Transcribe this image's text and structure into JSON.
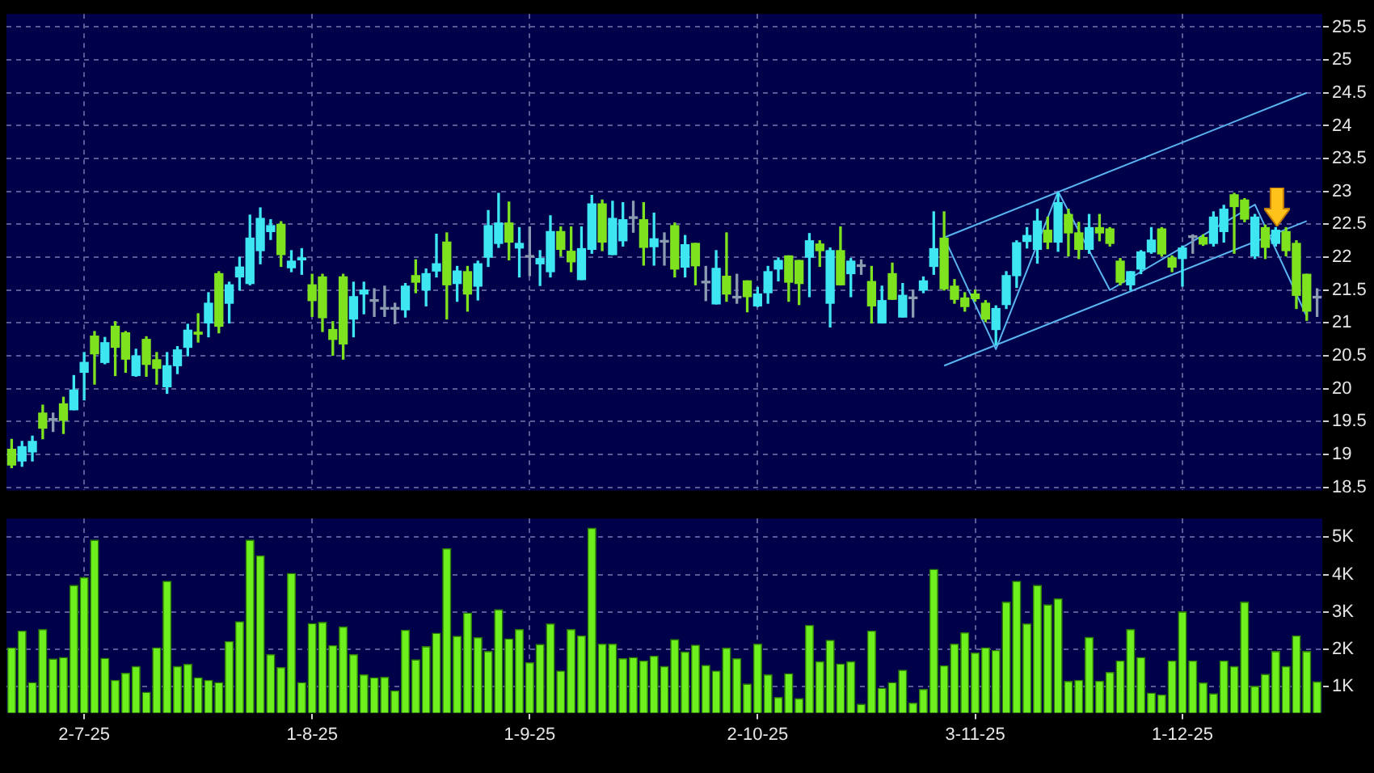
{
  "chart_data": [
    {
      "type": "candlestick",
      "categories": [
        null,
        null,
        null,
        null,
        null,
        null,
        null,
        null,
        null,
        null,
        null,
        null,
        null,
        null,
        null,
        null,
        null,
        null,
        null,
        null,
        null,
        null,
        null,
        null,
        null,
        null,
        null,
        null,
        null,
        null,
        null,
        null,
        null,
        null,
        null,
        null,
        null,
        null,
        null,
        null,
        null,
        null,
        null,
        null,
        null,
        null,
        null,
        null,
        null,
        null,
        null,
        null,
        null,
        null,
        null,
        null,
        null,
        null,
        null,
        null,
        null,
        null,
        null,
        null,
        null,
        null,
        null,
        null,
        null,
        null,
        null,
        null,
        null,
        null,
        null,
        null,
        null,
        null,
        null,
        null,
        null,
        null,
        null,
        null,
        null,
        null,
        null,
        null,
        null,
        null,
        null,
        null,
        null,
        null,
        null,
        null,
        null,
        null,
        null,
        null,
        null,
        null,
        null,
        null,
        null,
        null,
        null,
        null,
        null,
        null,
        null,
        null,
        null,
        null,
        null,
        null,
        null,
        null,
        null,
        null,
        null,
        null,
        null,
        null,
        null,
        null,
        null
      ],
      "ohlc": [
        [
          19.08,
          19.23,
          18.8,
          18.84
        ],
        [
          18.9,
          19.2,
          18.82,
          19.12
        ],
        [
          19.04,
          19.28,
          18.9,
          19.2
        ],
        [
          19.63,
          19.75,
          19.24,
          19.4
        ],
        [
          19.52,
          19.63,
          19.35,
          19.52
        ],
        [
          19.77,
          19.87,
          19.32,
          19.52
        ],
        [
          19.68,
          20.2,
          19.68,
          19.98
        ],
        [
          20.25,
          20.55,
          19.83,
          20.4
        ],
        [
          20.8,
          20.87,
          20.07,
          20.53
        ],
        [
          20.4,
          20.78,
          20.38,
          20.7
        ],
        [
          20.95,
          21.02,
          20.2,
          20.63
        ],
        [
          20.85,
          20.87,
          20.25,
          20.45
        ],
        [
          20.2,
          20.6,
          20.19,
          20.5
        ],
        [
          20.75,
          20.79,
          20.19,
          20.37
        ],
        [
          20.44,
          20.55,
          20.07,
          20.31
        ],
        [
          20.03,
          20.55,
          19.93,
          20.35
        ],
        [
          20.35,
          20.64,
          20.23,
          20.59
        ],
        [
          20.63,
          20.98,
          20.5,
          20.89
        ],
        [
          20.86,
          21.14,
          20.71,
          20.83
        ],
        [
          21.0,
          21.46,
          20.79,
          21.3
        ],
        [
          21.75,
          21.78,
          20.85,
          20.95
        ],
        [
          21.3,
          21.62,
          21.0,
          21.58
        ],
        [
          21.7,
          22.0,
          21.5,
          21.85
        ],
        [
          21.6,
          22.64,
          21.58,
          22.29
        ],
        [
          22.1,
          22.75,
          21.9,
          22.59
        ],
        [
          22.39,
          22.57,
          22.27,
          22.48
        ],
        [
          22.5,
          22.54,
          21.86,
          22.04
        ],
        [
          21.84,
          22.1,
          21.78,
          21.94
        ],
        [
          21.96,
          22.13,
          21.74,
          21.99
        ],
        [
          21.58,
          21.74,
          21.1,
          21.34
        ],
        [
          21.7,
          21.74,
          20.87,
          21.08
        ],
        [
          20.9,
          21.02,
          20.51,
          20.75
        ],
        [
          21.7,
          21.74,
          20.45,
          20.68
        ],
        [
          21.06,
          21.62,
          20.79,
          21.4
        ],
        [
          21.44,
          21.62,
          21.14,
          21.5
        ],
        [
          21.33,
          21.52,
          21.1,
          21.33
        ],
        [
          21.21,
          21.56,
          21.1,
          21.21
        ],
        [
          21.21,
          21.3,
          20.99,
          21.21
        ],
        [
          21.2,
          21.6,
          21.09,
          21.56
        ],
        [
          21.72,
          21.96,
          21.46,
          21.62
        ],
        [
          21.5,
          21.82,
          21.26,
          21.75
        ],
        [
          21.79,
          22.35,
          21.7,
          21.9
        ],
        [
          22.23,
          22.37,
          21.06,
          21.58
        ],
        [
          21.6,
          21.86,
          21.33,
          21.79
        ],
        [
          21.78,
          21.86,
          21.18,
          21.44
        ],
        [
          21.56,
          21.94,
          21.35,
          21.9
        ],
        [
          22.0,
          22.71,
          21.86,
          22.48
        ],
        [
          22.21,
          22.97,
          22.15,
          22.52
        ],
        [
          22.52,
          22.84,
          21.96,
          22.23
        ],
        [
          22.14,
          22.45,
          21.7,
          22.21
        ],
        [
          22.0,
          22.46,
          21.72,
          22.0
        ],
        [
          21.9,
          22.1,
          21.57,
          21.98
        ],
        [
          21.78,
          22.63,
          21.7,
          22.39
        ],
        [
          22.39,
          22.46,
          22.02,
          22.12
        ],
        [
          22.09,
          22.46,
          21.78,
          21.93
        ],
        [
          21.66,
          22.46,
          21.66,
          22.13
        ],
        [
          22.12,
          22.94,
          22.06,
          22.81
        ],
        [
          22.81,
          22.87,
          22.1,
          22.23
        ],
        [
          22.04,
          22.85,
          22.04,
          22.59
        ],
        [
          22.25,
          22.83,
          22.17,
          22.57
        ],
        [
          22.59,
          22.85,
          22.38,
          22.59
        ],
        [
          22.57,
          22.83,
          21.88,
          22.15
        ],
        [
          22.16,
          22.67,
          21.88,
          22.28
        ],
        [
          22.23,
          22.37,
          21.88,
          22.23
        ],
        [
          22.48,
          22.52,
          21.7,
          21.82
        ],
        [
          21.85,
          22.33,
          21.7,
          22.19
        ],
        [
          22.21,
          22.21,
          21.58,
          21.87
        ],
        [
          21.61,
          21.86,
          21.34,
          21.61
        ],
        [
          21.29,
          22.1,
          21.29,
          21.83
        ],
        [
          21.71,
          22.37,
          21.33,
          21.44
        ],
        [
          21.38,
          21.74,
          21.3,
          21.38
        ],
        [
          21.64,
          21.64,
          21.17,
          21.4
        ],
        [
          21.26,
          21.54,
          21.25,
          21.44
        ],
        [
          21.46,
          21.86,
          21.3,
          21.78
        ],
        [
          21.82,
          21.99,
          21.64,
          21.95
        ],
        [
          22.02,
          22.02,
          21.33,
          21.62
        ],
        [
          21.95,
          21.95,
          21.28,
          21.6
        ],
        [
          22.0,
          22.36,
          21.4,
          22.25
        ],
        [
          22.2,
          22.25,
          21.86,
          22.1
        ],
        [
          21.3,
          22.14,
          20.94,
          22.1
        ],
        [
          22.1,
          22.46,
          21.58,
          21.58
        ],
        [
          21.75,
          21.98,
          21.4,
          21.94
        ],
        [
          21.86,
          21.96,
          21.74,
          21.86
        ],
        [
          21.63,
          21.86,
          21.0,
          21.26
        ],
        [
          21.0,
          21.56,
          21.0,
          21.34
        ],
        [
          21.75,
          21.91,
          21.36,
          21.36
        ],
        [
          21.09,
          21.6,
          21.09,
          21.42
        ],
        [
          21.37,
          21.5,
          21.09,
          21.37
        ],
        [
          21.5,
          21.7,
          21.46,
          21.64
        ],
        [
          21.86,
          22.69,
          21.74,
          22.13
        ],
        [
          22.29,
          22.69,
          21.5,
          21.52
        ],
        [
          21.56,
          21.66,
          21.3,
          21.36
        ],
        [
          21.38,
          21.46,
          21.18,
          21.25
        ],
        [
          21.44,
          21.5,
          21.33,
          21.37
        ],
        [
          21.3,
          21.34,
          21.02,
          21.06
        ],
        [
          20.9,
          21.26,
          20.67,
          21.22
        ],
        [
          21.28,
          21.78,
          21.22,
          21.72
        ],
        [
          21.72,
          22.25,
          21.54,
          22.22
        ],
        [
          22.24,
          22.45,
          22.14,
          22.33
        ],
        [
          22.12,
          22.73,
          21.91,
          22.55
        ],
        [
          22.41,
          22.61,
          22.13,
          22.23
        ],
        [
          22.23,
          22.97,
          22.09,
          22.83
        ],
        [
          22.65,
          22.73,
          22.02,
          22.37
        ],
        [
          22.37,
          22.53,
          21.98,
          22.12
        ],
        [
          22.12,
          22.65,
          22.06,
          22.45
        ],
        [
          22.45,
          22.65,
          22.25,
          22.37
        ],
        [
          22.43,
          22.45,
          22.17,
          22.21
        ],
        [
          21.94,
          21.98,
          21.58,
          21.62
        ],
        [
          21.58,
          21.78,
          21.5,
          21.78
        ],
        [
          21.82,
          22.1,
          21.75,
          22.08
        ],
        [
          22.08,
          22.45,
          22.06,
          22.26
        ],
        [
          22.43,
          22.45,
          22.02,
          22.05
        ],
        [
          21.99,
          22.02,
          21.78,
          21.85
        ],
        [
          21.98,
          22.17,
          21.56,
          22.14
        ],
        [
          22.3,
          22.34,
          22.06,
          22.3
        ],
        [
          22.3,
          22.34,
          22.18,
          22.2
        ],
        [
          22.21,
          22.69,
          22.17,
          22.61
        ],
        [
          22.39,
          22.79,
          22.23,
          22.73
        ],
        [
          22.95,
          22.97,
          22.06,
          22.77
        ],
        [
          22.87,
          22.89,
          22.54,
          22.58
        ],
        [
          22.02,
          22.65,
          21.98,
          22.61
        ],
        [
          22.45,
          22.49,
          21.98,
          22.15
        ],
        [
          22.21,
          22.45,
          22.17,
          22.41
        ],
        [
          22.39,
          22.45,
          22.02,
          22.1
        ],
        [
          22.21,
          22.25,
          21.22,
          21.42
        ],
        [
          21.74,
          21.74,
          21.04,
          21.18
        ],
        [
          21.38,
          21.52,
          21.1,
          21.38
        ]
      ],
      "colors": [
        "#7ee21e",
        "#3ee6f2",
        "#3ee6f2",
        "#7ee21e",
        "#8c9cb0",
        "#7ee21e",
        "#3ee6f2",
        "#3ee6f2",
        "#7ee21e",
        "#3ee6f2",
        "#7ee21e",
        "#7ee21e",
        "#3ee6f2",
        "#7ee21e",
        "#7ee21e",
        "#3ee6f2",
        "#3ee6f2",
        "#3ee6f2",
        "#7ee21e",
        "#3ee6f2",
        "#7ee21e",
        "#3ee6f2",
        "#3ee6f2",
        "#3ee6f2",
        "#3ee6f2",
        "#3ee6f2",
        "#7ee21e",
        "#3ee6f2",
        "#3ee6f2",
        "#7ee21e",
        "#7ee21e",
        "#7ee21e",
        "#7ee21e",
        "#3ee6f2",
        "#3ee6f2",
        "#8c9cb0",
        "#8c9cb0",
        "#8c9cb0",
        "#3ee6f2",
        "#7ee21e",
        "#3ee6f2",
        "#3ee6f2",
        "#7ee21e",
        "#3ee6f2",
        "#7ee21e",
        "#3ee6f2",
        "#3ee6f2",
        "#3ee6f2",
        "#7ee21e",
        "#3ee6f2",
        "#8c9cb0",
        "#3ee6f2",
        "#3ee6f2",
        "#7ee21e",
        "#7ee21e",
        "#3ee6f2",
        "#3ee6f2",
        "#7ee21e",
        "#3ee6f2",
        "#3ee6f2",
        "#8c9cb0",
        "#7ee21e",
        "#3ee6f2",
        "#8c9cb0",
        "#7ee21e",
        "#3ee6f2",
        "#7ee21e",
        "#8c9cb0",
        "#3ee6f2",
        "#7ee21e",
        "#8c9cb0",
        "#7ee21e",
        "#3ee6f2",
        "#3ee6f2",
        "#3ee6f2",
        "#7ee21e",
        "#7ee21e",
        "#3ee6f2",
        "#7ee21e",
        "#3ee6f2",
        "#7ee21e",
        "#3ee6f2",
        "#8c9cb0",
        "#7ee21e",
        "#3ee6f2",
        "#7ee21e",
        "#3ee6f2",
        "#8c9cb0",
        "#3ee6f2",
        "#3ee6f2",
        "#7ee21e",
        "#7ee21e",
        "#7ee21e",
        "#7ee21e",
        "#7ee21e",
        "#3ee6f2",
        "#3ee6f2",
        "#3ee6f2",
        "#3ee6f2",
        "#3ee6f2",
        "#7ee21e",
        "#3ee6f2",
        "#7ee21e",
        "#7ee21e",
        "#3ee6f2",
        "#7ee21e",
        "#7ee21e",
        "#7ee21e",
        "#3ee6f2",
        "#3ee6f2",
        "#3ee6f2",
        "#7ee21e",
        "#7ee21e",
        "#3ee6f2",
        "#8c9cb0",
        "#7ee21e",
        "#3ee6f2",
        "#3ee6f2",
        "#7ee21e",
        "#7ee21e",
        "#3ee6f2",
        "#7ee21e",
        "#3ee6f2",
        "#7ee21e",
        "#7ee21e",
        "#7ee21e",
        "#8c9cb0"
      ],
      "series": [
        {
          "type": "line",
          "color": "#5ab4f0",
          "values": [
            null,
            null,
            null,
            null,
            null,
            null,
            null,
            null,
            null,
            null,
            null,
            null,
            null,
            null,
            null,
            null,
            null,
            null,
            null,
            null,
            null,
            null,
            null,
            null,
            null,
            null,
            null,
            null,
            null,
            null,
            null,
            null,
            null,
            null,
            null,
            null,
            null,
            null,
            null,
            null,
            null,
            null,
            null,
            null,
            null,
            null,
            null,
            null,
            null,
            null,
            null,
            null,
            null,
            null,
            null,
            null,
            null,
            null,
            null,
            null,
            null,
            null,
            null,
            null,
            null,
            null,
            null,
            null,
            null,
            null,
            null,
            null,
            null,
            null,
            null,
            null,
            null,
            null,
            null,
            null,
            null,
            null,
            null,
            null,
            null,
            null,
            null,
            null,
            null,
            null,
            22.3,
            null,
            null,
            null,
            null,
            null,
            null,
            null,
            null,
            null,
            null,
            null,
            null,
            null,
            null,
            null,
            null,
            null,
            null,
            null,
            null,
            null,
            null,
            null,
            null,
            null,
            null,
            null,
            null,
            null,
            null,
            null,
            null,
            null,
            null,
            24.5,
            null
          ]
        },
        {
          "type": "line",
          "color": "#5ab4f0",
          "values": [
            null,
            null,
            null,
            null,
            null,
            null,
            null,
            null,
            null,
            null,
            null,
            null,
            null,
            null,
            null,
            null,
            null,
            null,
            null,
            null,
            null,
            null,
            null,
            null,
            null,
            null,
            null,
            null,
            null,
            null,
            null,
            null,
            null,
            null,
            null,
            null,
            null,
            null,
            null,
            null,
            null,
            null,
            null,
            null,
            null,
            null,
            null,
            null,
            null,
            null,
            null,
            null,
            null,
            null,
            null,
            null,
            null,
            null,
            null,
            null,
            null,
            null,
            null,
            null,
            null,
            null,
            null,
            null,
            null,
            null,
            null,
            null,
            null,
            null,
            null,
            null,
            null,
            null,
            null,
            null,
            null,
            null,
            null,
            null,
            null,
            null,
            null,
            null,
            null,
            null,
            20.35,
            null,
            null,
            null,
            null,
            null,
            null,
            null,
            null,
            null,
            null,
            null,
            null,
            null,
            null,
            null,
            null,
            null,
            null,
            null,
            null,
            null,
            null,
            null,
            null,
            null,
            null,
            null,
            null,
            null,
            null,
            null,
            null,
            null,
            null,
            22.55,
            null
          ]
        },
        {
          "type": "line",
          "color": "#5ab4f0",
          "values": [
            null,
            null,
            null,
            null,
            null,
            null,
            null,
            null,
            null,
            null,
            null,
            null,
            null,
            null,
            null,
            null,
            null,
            null,
            null,
            null,
            null,
            null,
            null,
            null,
            null,
            null,
            null,
            null,
            null,
            null,
            null,
            null,
            null,
            null,
            null,
            null,
            null,
            null,
            null,
            null,
            null,
            null,
            null,
            null,
            null,
            null,
            null,
            null,
            null,
            null,
            null,
            null,
            null,
            null,
            null,
            null,
            null,
            null,
            null,
            null,
            null,
            null,
            null,
            null,
            null,
            null,
            null,
            null,
            null,
            null,
            null,
            null,
            null,
            null,
            null,
            null,
            null,
            null,
            null,
            null,
            null,
            null,
            null,
            null,
            null,
            null,
            null,
            null,
            null,
            null,
            22.3,
            null,
            null,
            null,
            null,
            20.6,
            null,
            null,
            null,
            null,
            null,
            23.0,
            null,
            null,
            null,
            null,
            21.5,
            null,
            null,
            null,
            null,
            null,
            null,
            null,
            null,
            null,
            null,
            null,
            null,
            null,
            22.8,
            null,
            null,
            null,
            null,
            21.1,
            null
          ]
        }
      ],
      "ylim": [
        18.45,
        25.7
      ],
      "yticks": [
        18.5,
        19,
        19.5,
        20,
        20.5,
        21,
        21.5,
        22,
        22.5,
        23,
        23.5,
        24,
        24.5,
        25,
        25.5
      ],
      "grid": true,
      "tick_labels": "y",
      "legend": false,
      "marker": "none",
      "line_style": "solid"
    },
    {
      "type": "bar",
      "categories": [
        null,
        null,
        null,
        null,
        null,
        null,
        null,
        "2-7-25",
        null,
        null,
        null,
        null,
        null,
        null,
        null,
        null,
        null,
        null,
        null,
        null,
        null,
        null,
        null,
        null,
        null,
        null,
        null,
        null,
        null,
        "1-8-25",
        null,
        null,
        null,
        null,
        null,
        null,
        null,
        null,
        null,
        null,
        null,
        null,
        null,
        null,
        null,
        null,
        null,
        null,
        null,
        null,
        "1-9-25",
        null,
        null,
        null,
        null,
        null,
        null,
        null,
        null,
        null,
        null,
        null,
        null,
        null,
        null,
        null,
        null,
        null,
        null,
        null,
        null,
        null,
        "2-10-25",
        null,
        null,
        null,
        null,
        null,
        null,
        null,
        null,
        null,
        null,
        null,
        null,
        null,
        null,
        null,
        null,
        null,
        null,
        null,
        null,
        "3-11-25",
        null,
        null,
        null,
        null,
        null,
        null,
        null,
        null,
        null,
        null,
        null,
        null,
        null,
        null,
        null,
        null,
        null,
        null,
        null,
        "1-12-25",
        null,
        null,
        null,
        null,
        null,
        null,
        null,
        null,
        null,
        null,
        null,
        null,
        null
      ],
      "values": [
        2.04,
        2.49,
        1.11,
        2.53,
        1.74,
        1.78,
        3.71,
        3.92,
        4.92,
        1.76,
        1.17,
        1.36,
        1.54,
        0.85,
        2.04,
        3.82,
        1.54,
        1.6,
        1.24,
        1.17,
        1.11,
        2.21,
        2.74,
        4.92,
        4.5,
        1.86,
        1.51,
        4.03,
        1.11,
        2.69,
        2.72,
        2.1,
        2.6,
        1.86,
        1.32,
        1.24,
        1.25,
        0.89,
        2.51,
        1.72,
        2.07,
        2.43,
        4.69,
        2.35,
        2.97,
        2.31,
        1.94,
        3.06,
        2.28,
        2.53,
        1.64,
        2.13,
        2.68,
        1.42,
        2.53,
        2.36,
        5.24,
        2.14,
        2.14,
        1.75,
        1.78,
        1.69,
        1.82,
        1.54,
        2.26,
        1.93,
        2.11,
        1.57,
        1.42,
        2.03,
        1.75,
        1.07,
        2.14,
        1.32,
        0.71,
        1.35,
        0.68,
        2.64,
        1.67,
        2.24,
        1.61,
        1.67,
        0.53,
        2.49,
        0.96,
        1.11,
        1.44,
        0.56,
        0.93,
        4.14,
        1.56,
        2.14,
        2.44,
        1.9,
        2.04,
        1.97,
        3.26,
        3.82,
        2.68,
        3.71,
        3.19,
        3.35,
        1.14,
        1.17,
        2.32,
        1.15,
        1.38,
        1.69,
        2.53,
        1.78,
        0.83,
        0.78,
        1.69,
        3.0,
        1.69,
        1.1,
        0.81,
        1.69,
        1.54,
        3.26,
        1.01,
        1.33,
        1.94,
        1.54,
        2.36,
        1.94,
        1.13
      ],
      "color": "#6ef01e",
      "ylim": [
        0.3,
        5.5
      ],
      "yticks": [
        {
          "value": 1,
          "label": "1K"
        },
        {
          "value": 2,
          "label": "2K"
        },
        {
          "value": 3,
          "label": "3K"
        },
        {
          "value": 4,
          "label": "4K"
        },
        {
          "value": 5,
          "label": "5K"
        }
      ],
      "grid": true,
      "legend": false
    }
  ]
}
